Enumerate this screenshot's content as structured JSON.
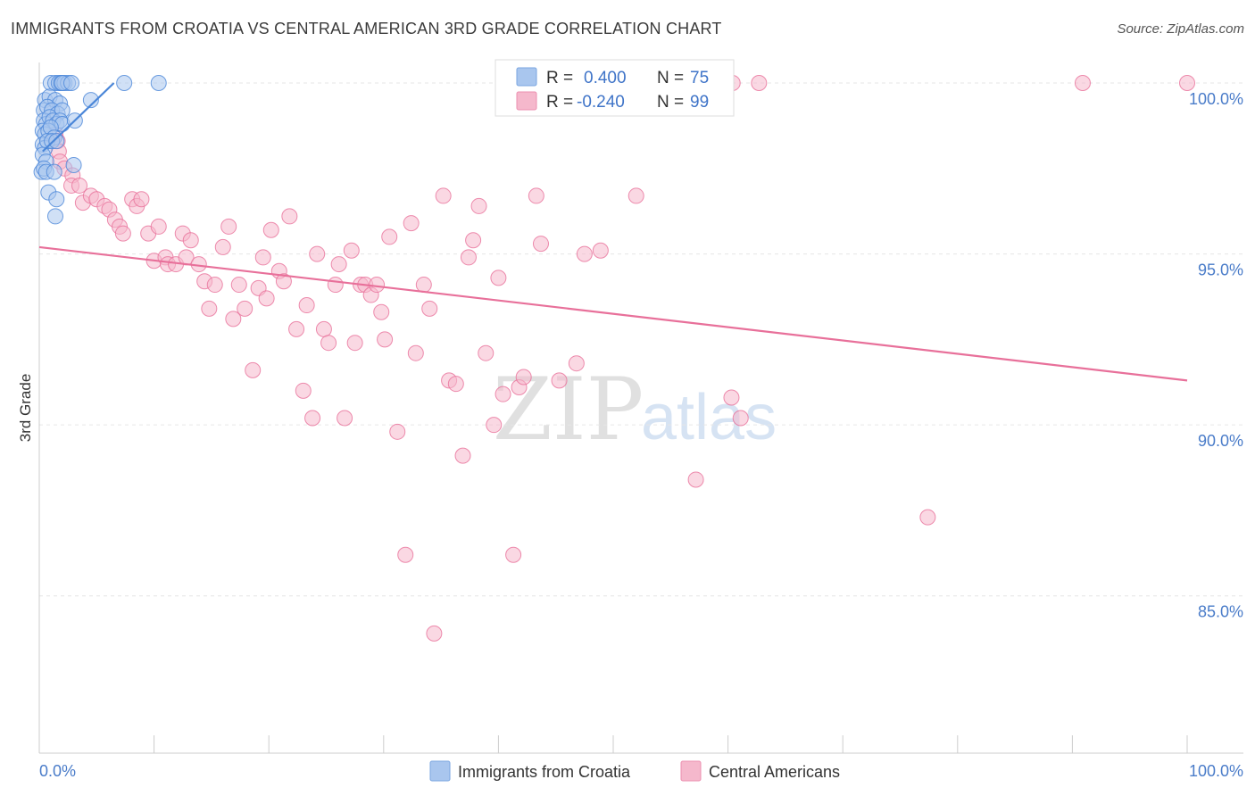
{
  "title": "IMMIGRANTS FROM CROATIA VS CENTRAL AMERICAN 3RD GRADE CORRELATION CHART",
  "source": "Source: ZipAtlas.com",
  "watermark": {
    "zip": "ZIP",
    "atlas": "atlas"
  },
  "colors": {
    "blue": "#4a86d8",
    "blue_fill": "#a9c6ee",
    "pink": "#e8709a",
    "pink_fill": "#f5b8cc",
    "axis_text": "#4a7cc9"
  },
  "legend": {
    "series1": {
      "r_label": "R = ",
      "r_value": "0.400",
      "n_label": "N = ",
      "n_value": "75"
    },
    "series2": {
      "r_label": "R = ",
      "r_value": "-0.240",
      "n_label": "N = ",
      "n_value": "99"
    }
  },
  "bottom_legend": [
    "Immigrants from Croatia",
    "Central Americans"
  ],
  "chart_data": {
    "type": "scatter",
    "title": "IMMIGRANTS FROM CROATIA VS CENTRAL AMERICAN 3RD GRADE CORRELATION CHART",
    "xlabel": "",
    "ylabel": "3rd Grade",
    "xlim": [
      0,
      100
    ],
    "ylim": [
      80.4,
      100.6
    ],
    "x_tick_labels": [
      "0.0%",
      "100.0%"
    ],
    "y_ticks": [
      85,
      90,
      95,
      100
    ],
    "y_tick_labels": [
      "85.0%",
      "90.0%",
      "95.0%",
      "100.0%"
    ],
    "series": [
      {
        "name": "Immigrants from Croatia",
        "r": 0.4,
        "n": 75,
        "trend": {
          "x": [
            0.3,
            6.5
          ],
          "y": [
            98.0,
            100.0
          ]
        },
        "points": [
          [
            1.0,
            100.0
          ],
          [
            1.4,
            100.0
          ],
          [
            1.7,
            100.0
          ],
          [
            1.9,
            100.0
          ],
          [
            2.2,
            100.0
          ],
          [
            2.5,
            100.0
          ],
          [
            2.0,
            100.0
          ],
          [
            2.8,
            100.0
          ],
          [
            7.4,
            100.0
          ],
          [
            10.4,
            100.0
          ],
          [
            0.5,
            99.5
          ],
          [
            0.9,
            99.6
          ],
          [
            1.4,
            99.5
          ],
          [
            1.8,
            99.4
          ],
          [
            4.5,
            99.5
          ],
          [
            0.4,
            99.2
          ],
          [
            0.7,
            99.3
          ],
          [
            1.1,
            99.2
          ],
          [
            1.6,
            99.1
          ],
          [
            2.0,
            99.2
          ],
          [
            0.4,
            98.9
          ],
          [
            0.6,
            98.8
          ],
          [
            0.9,
            99.0
          ],
          [
            1.2,
            98.9
          ],
          [
            1.5,
            98.8
          ],
          [
            1.8,
            98.9
          ],
          [
            2.0,
            98.8
          ],
          [
            3.1,
            98.9
          ],
          [
            0.3,
            98.6
          ],
          [
            0.5,
            98.5
          ],
          [
            0.8,
            98.6
          ],
          [
            1.0,
            98.7
          ],
          [
            1.3,
            98.4
          ],
          [
            0.3,
            98.2
          ],
          [
            0.5,
            98.1
          ],
          [
            0.7,
            98.3
          ],
          [
            1.1,
            98.3
          ],
          [
            1.5,
            98.3
          ],
          [
            0.3,
            97.9
          ],
          [
            0.6,
            97.7
          ],
          [
            0.2,
            97.4
          ],
          [
            0.4,
            97.5
          ],
          [
            0.6,
            97.4
          ],
          [
            1.3,
            97.4
          ],
          [
            3.0,
            97.6
          ],
          [
            0.8,
            96.8
          ],
          [
            1.5,
            96.6
          ],
          [
            1.4,
            96.1
          ]
        ]
      },
      {
        "name": "Central Americans",
        "r": -0.24,
        "n": 99,
        "trend": {
          "x": [
            0,
            100
          ],
          "y": [
            95.2,
            91.3
          ]
        },
        "points": [
          [
            60.4,
            100.0
          ],
          [
            62.7,
            100.0
          ],
          [
            90.9,
            100.0
          ],
          [
            100.0,
            100.0
          ],
          [
            1.4,
            98.5
          ],
          [
            1.6,
            98.3
          ],
          [
            1.7,
            98.0
          ],
          [
            1.8,
            97.7
          ],
          [
            2.2,
            97.5
          ],
          [
            2.9,
            97.3
          ],
          [
            2.8,
            97.0
          ],
          [
            3.5,
            97.0
          ],
          [
            3.8,
            96.5
          ],
          [
            4.5,
            96.7
          ],
          [
            5.0,
            96.6
          ],
          [
            5.7,
            96.4
          ],
          [
            6.1,
            96.3
          ],
          [
            6.6,
            96.0
          ],
          [
            7.0,
            95.8
          ],
          [
            7.3,
            95.6
          ],
          [
            8.1,
            96.6
          ],
          [
            8.5,
            96.4
          ],
          [
            8.9,
            96.6
          ],
          [
            9.5,
            95.6
          ],
          [
            10.0,
            94.8
          ],
          [
            10.4,
            95.8
          ],
          [
            11.0,
            94.9
          ],
          [
            11.2,
            94.7
          ],
          [
            11.9,
            94.7
          ],
          [
            12.5,
            95.6
          ],
          [
            12.8,
            94.9
          ],
          [
            13.2,
            95.4
          ],
          [
            13.9,
            94.7
          ],
          [
            14.4,
            94.2
          ],
          [
            14.8,
            93.4
          ],
          [
            15.3,
            94.1
          ],
          [
            16.0,
            95.2
          ],
          [
            16.5,
            95.8
          ],
          [
            16.9,
            93.1
          ],
          [
            17.4,
            94.1
          ],
          [
            17.9,
            93.4
          ],
          [
            18.6,
            91.6
          ],
          [
            19.1,
            94.0
          ],
          [
            19.5,
            94.9
          ],
          [
            19.8,
            93.7
          ],
          [
            20.2,
            95.7
          ],
          [
            20.9,
            94.5
          ],
          [
            21.3,
            94.2
          ],
          [
            21.8,
            96.1
          ],
          [
            22.4,
            92.8
          ],
          [
            23.0,
            91.0
          ],
          [
            23.3,
            93.5
          ],
          [
            23.8,
            90.2
          ],
          [
            24.2,
            95.0
          ],
          [
            24.8,
            92.8
          ],
          [
            25.2,
            92.4
          ],
          [
            25.8,
            94.1
          ],
          [
            26.1,
            94.7
          ],
          [
            26.6,
            90.2
          ],
          [
            27.2,
            95.1
          ],
          [
            27.5,
            92.4
          ],
          [
            28.0,
            94.1
          ],
          [
            28.4,
            94.1
          ],
          [
            28.9,
            93.8
          ],
          [
            29.4,
            94.1
          ],
          [
            29.8,
            93.3
          ],
          [
            30.1,
            92.5
          ],
          [
            30.5,
            95.5
          ],
          [
            31.2,
            89.8
          ],
          [
            31.9,
            86.2
          ],
          [
            32.4,
            95.9
          ],
          [
            32.8,
            92.1
          ],
          [
            33.5,
            94.1
          ],
          [
            34.0,
            93.4
          ],
          [
            34.4,
            83.9
          ],
          [
            35.2,
            96.7
          ],
          [
            35.7,
            91.3
          ],
          [
            36.3,
            91.2
          ],
          [
            36.9,
            89.1
          ],
          [
            37.4,
            94.9
          ],
          [
            37.8,
            95.4
          ],
          [
            38.3,
            96.4
          ],
          [
            38.9,
            92.1
          ],
          [
            39.6,
            90.0
          ],
          [
            40.0,
            94.3
          ],
          [
            40.4,
            90.9
          ],
          [
            41.3,
            86.2
          ],
          [
            41.8,
            91.1
          ],
          [
            42.2,
            91.4
          ],
          [
            43.3,
            96.7
          ],
          [
            43.7,
            95.3
          ],
          [
            45.3,
            91.3
          ],
          [
            46.8,
            91.8
          ],
          [
            47.5,
            95.0
          ],
          [
            48.9,
            95.1
          ],
          [
            52.0,
            96.7
          ],
          [
            57.2,
            88.4
          ],
          [
            60.3,
            90.8
          ],
          [
            61.1,
            90.2
          ],
          [
            77.4,
            87.3
          ]
        ]
      }
    ]
  }
}
